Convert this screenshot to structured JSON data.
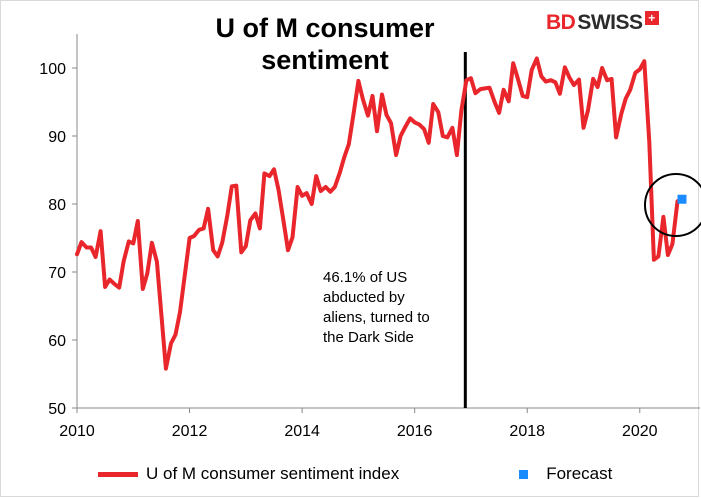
{
  "logo": {
    "bd": "BD",
    "swiss": "SWISS",
    "cross": "+"
  },
  "chart_data": {
    "type": "line",
    "title": "U of M consumer sentiment",
    "xlabel": "",
    "ylabel": "",
    "xlim": [
      2010,
      2021.07
    ],
    "ylim": [
      50,
      105
    ],
    "x_ticks": [
      2010,
      2012,
      2014,
      2016,
      2018,
      2020
    ],
    "y_ticks": [
      50,
      60,
      70,
      80,
      90,
      100
    ],
    "grid": false,
    "legend_position": "bottom",
    "colors": {
      "main": "#e8262b",
      "forecast": "#1a8cff",
      "vline": "#000000"
    },
    "vertical_line_x": 2016.9,
    "annotation": "46.1% of US abducted by aliens, turned to the Dark Side",
    "highlight_circle": {
      "x": 2020.75,
      "y": 80
    },
    "series": [
      {
        "name": "U of M consumer sentiment index",
        "x": [
          2010.0,
          2010.08,
          2010.17,
          2010.25,
          2010.33,
          2010.42,
          2010.5,
          2010.58,
          2010.67,
          2010.75,
          2010.83,
          2010.92,
          2011.0,
          2011.08,
          2011.17,
          2011.25,
          2011.33,
          2011.42,
          2011.5,
          2011.58,
          2011.67,
          2011.75,
          2011.83,
          2011.92,
          2012.0,
          2012.08,
          2012.17,
          2012.25,
          2012.33,
          2012.42,
          2012.5,
          2012.58,
          2012.67,
          2012.75,
          2012.83,
          2012.92,
          2013.0,
          2013.08,
          2013.17,
          2013.25,
          2013.33,
          2013.42,
          2013.5,
          2013.58,
          2013.67,
          2013.75,
          2013.83,
          2013.92,
          2014.0,
          2014.08,
          2014.17,
          2014.25,
          2014.33,
          2014.42,
          2014.5,
          2014.58,
          2014.67,
          2014.75,
          2014.83,
          2014.92,
          2015.0,
          2015.08,
          2015.17,
          2015.25,
          2015.33,
          2015.42,
          2015.5,
          2015.58,
          2015.67,
          2015.75,
          2015.83,
          2015.92,
          2016.0,
          2016.08,
          2016.17,
          2016.25,
          2016.33,
          2016.42,
          2016.5,
          2016.58,
          2016.67,
          2016.75,
          2016.83,
          2016.92,
          2017.0,
          2017.08,
          2017.17,
          2017.25,
          2017.33,
          2017.42,
          2017.5,
          2017.58,
          2017.67,
          2017.75,
          2017.83,
          2017.92,
          2018.0,
          2018.08,
          2018.17,
          2018.25,
          2018.33,
          2018.42,
          2018.5,
          2018.58,
          2018.67,
          2018.75,
          2018.83,
          2018.92,
          2019.0,
          2019.08,
          2019.17,
          2019.25,
          2019.33,
          2019.42,
          2019.5,
          2019.58,
          2019.67,
          2019.75,
          2019.83,
          2019.92,
          2020.0,
          2020.08,
          2020.17,
          2020.25,
          2020.33,
          2020.42,
          2020.5,
          2020.58,
          2020.67
        ],
        "values": [
          72.6,
          74.4,
          73.6,
          73.6,
          72.2,
          76.0,
          67.8,
          68.9,
          68.2,
          67.7,
          71.6,
          74.5,
          74.2,
          77.5,
          67.5,
          69.8,
          74.3,
          71.5,
          63.7,
          55.8,
          59.5,
          60.8,
          64.1,
          69.9,
          75.0,
          75.3,
          76.2,
          76.4,
          79.3,
          73.2,
          72.3,
          74.3,
          78.3,
          82.6,
          82.7,
          72.9,
          73.8,
          77.6,
          78.6,
          76.4,
          84.5,
          84.1,
          85.1,
          82.1,
          77.5,
          73.2,
          75.1,
          82.5,
          81.2,
          81.6,
          80.0,
          84.1,
          81.9,
          82.5,
          81.8,
          82.5,
          84.6,
          86.9,
          88.8,
          93.6,
          98.1,
          95.4,
          93.0,
          95.9,
          90.7,
          96.1,
          93.1,
          91.9,
          87.2,
          90.0,
          91.3,
          92.6,
          92.0,
          91.7,
          91.0,
          89.0,
          94.7,
          93.5,
          90.0,
          89.8,
          91.2,
          87.2,
          93.8,
          98.2,
          98.5,
          96.3,
          96.9,
          97.0,
          97.1,
          95.0,
          93.4,
          96.8,
          95.1,
          100.7,
          98.5,
          95.9,
          95.7,
          99.7,
          101.4,
          98.8,
          98.0,
          98.2,
          97.9,
          96.2,
          100.1,
          98.6,
          97.5,
          98.3,
          91.2,
          93.8,
          98.4,
          97.2,
          100.0,
          98.2,
          98.4,
          89.8,
          93.2,
          95.5,
          96.8,
          99.3,
          99.8,
          101.0,
          89.1,
          71.8,
          72.3,
          78.1,
          72.5,
          74.1,
          80.4
        ]
      },
      {
        "name": "Forecast",
        "x": [
          2020.75
        ],
        "values": [
          80.7
        ]
      }
    ]
  }
}
